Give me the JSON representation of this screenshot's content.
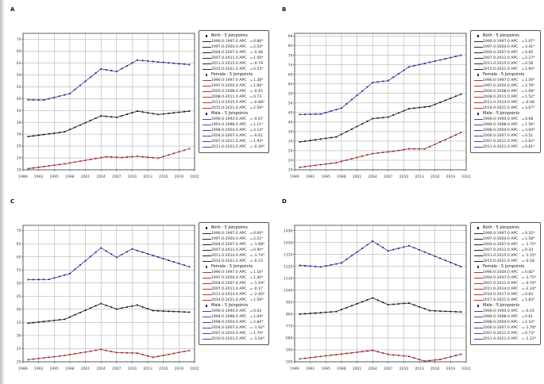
{
  "page": {
    "background": "#ffffff"
  },
  "colors": {
    "both": "#262626",
    "female": "#b23535",
    "male": "#4343b4",
    "both_marker": "#111111",
    "female_marker": "#8c2323",
    "male_marker": "#20206e",
    "grid": "#9a9a9a",
    "axis": "#3a3a3a",
    "legend_border": "#555555",
    "page_edge": "#c4c4c4"
  },
  "legend": {
    "equals": "="
  },
  "chart_data": [
    {
      "letter": "A",
      "type": "line",
      "grid": true,
      "legend_position": "right",
      "marker": "square",
      "title": "",
      "xlabel": "",
      "ylabel": "",
      "xlim": [
        1989,
        2022
      ],
      "ylim": [
        19,
        76.5
      ],
      "x_ticks": [
        1989,
        1992,
        1995,
        1998,
        2001,
        2004,
        2007,
        2010,
        2013,
        2016,
        2019,
        2022
      ],
      "y_ticks": [
        19,
        24,
        29,
        34,
        39,
        44,
        49,
        54,
        59,
        64,
        69,
        74
      ],
      "series": [
        {
          "id": "both",
          "legend_header": "Both - 5 Joinpoints",
          "joinpoints": {
            "x": [
              1990,
              1997,
              2004,
              2007,
              2011,
              2015,
              2021
            ],
            "y": [
              33.0,
              35.0,
              41.7,
              41.1,
              43.7,
              42.3,
              43.7
            ]
          },
          "entries": [
            {
              "range": "1990.0-1997.0 APC",
              "value": "0.86*"
            },
            {
              "range": "1997.0-2004.0 APC",
              "value": "2.54*"
            },
            {
              "range": "2004.0-2007.0 APC",
              "value": "-0.48"
            },
            {
              "range": "2007.0-2011.0 APC",
              "value": "1.56*"
            },
            {
              "range": "2011.0-2015.0 APC",
              "value": "-0.79"
            },
            {
              "range": "2015.0-2021.0 APC",
              "value": "0.53*"
            }
          ]
        },
        {
          "id": "female",
          "legend_header": "Female - 5 Joinpoints",
          "joinpoints": {
            "x": [
              1990,
              1997,
              2005,
              2008,
              2011,
              2015,
              2021
            ],
            "y": [
              19.5,
              21.5,
              24.5,
              24.2,
              24.7,
              23.9,
              27.9
            ]
          },
          "entries": [
            {
              "range": "1990.0-1997.0 APC",
              "value": "1.38*"
            },
            {
              "range": "1997.0-2005.0 APC",
              "value": "1.66*"
            },
            {
              "range": "2005.0-2008.0 APC",
              "value": "-0.45"
            },
            {
              "range": "2008.0-2011.0 APC",
              "value": "0.73"
            },
            {
              "range": "2011.0-2015.0 APC",
              "value": "-0.88*"
            },
            {
              "range": "2015.0-2021.0 APC",
              "value": "2.59*"
            }
          ]
        },
        {
          "id": "male",
          "legend_header": "Male - 5 Joinpoints",
          "joinpoints": {
            "x": [
              1990,
              1993,
              1998,
              2004,
              2007,
              2011,
              2021
            ],
            "y": [
              48.5,
              48.4,
              51.1,
              61.5,
              60.4,
              65.2,
              63.3
            ]
          },
          "entries": [
            {
              "range": "1990.0-1993.0 APC",
              "value": "-0.07"
            },
            {
              "range": "1993.0-1998.0 APC",
              "value": "1.11*"
            },
            {
              "range": "1998.0-2004.0 APC",
              "value": "3.14*"
            },
            {
              "range": "2004.0-2007.0 APC",
              "value": "-0.61"
            },
            {
              "range": "2007.0-2011.0 APC",
              "value": "1.93*"
            },
            {
              "range": "2011.0-2021.0 APC",
              "value": "-0.30*"
            }
          ]
        }
      ]
    },
    {
      "letter": "B",
      "type": "line",
      "grid": true,
      "legend_position": "right",
      "marker": "square",
      "title": "",
      "xlabel": "",
      "ylabel": "",
      "xlim": [
        1989,
        2022
      ],
      "ylim": [
        19,
        90.5
      ],
      "x_ticks": [
        1989,
        1992,
        1995,
        1998,
        2001,
        2004,
        2007,
        2010,
        2013,
        2016,
        2019,
        2022
      ],
      "y_ticks": [
        19,
        24,
        29,
        34,
        39,
        44,
        49,
        54,
        59,
        64,
        69,
        74,
        79,
        84,
        89
      ],
      "series": [
        {
          "id": "both",
          "legend_header": "Both - 5 Joinpoints",
          "joinpoints": {
            "x": [
              1990,
              1997,
              2004,
              2007,
              2011,
              2015,
              2021
            ],
            "y": [
              33.6,
              36.2,
              45.8,
              46.6,
              51.0,
              52.2,
              58.6
            ]
          },
          "entries": [
            {
              "range": "1990.0-1997.0 APC",
              "value": "1.07*"
            },
            {
              "range": "1997.0-2004.0 APC",
              "value": "3.41*"
            },
            {
              "range": "2004.0-2007.0 APC",
              "value": "0.60"
            },
            {
              "range": "2007.0-2011.0 APC",
              "value": "2.27*"
            },
            {
              "range": "2011.0-2015.0 APC",
              "value": "0.58"
            },
            {
              "range": "2015.0-2021.0 APC",
              "value": "1.94*"
            }
          ]
        },
        {
          "id": "female",
          "legend_header": "Female - 5 Joinpoints",
          "joinpoints": {
            "x": [
              1990,
              1997,
              2004,
              2008,
              2011,
              2014,
              2021
            ],
            "y": [
              20.3,
              22.7,
              27.5,
              28.7,
              30.0,
              29.9,
              38.5
            ]
          },
          "entries": [
            {
              "range": "1990.0-1997.0 APC",
              "value": "1.59*"
            },
            {
              "range": "1997.0-2004.0 APC",
              "value": "2.76*"
            },
            {
              "range": "2004.0-2008.0 APC",
              "value": "1.08*"
            },
            {
              "range": "2008.0-2011.0 APC",
              "value": "1.52*"
            },
            {
              "range": "2011.0-2014.0 APC",
              "value": "-0.08"
            },
            {
              "range": "2014.0-2021.0 APC",
              "value": "3.67*"
            }
          ]
        },
        {
          "id": "male",
          "legend_header": "Male - 5 Joinpoints",
          "joinpoints": {
            "x": [
              1990,
              1994,
              1998,
              2004,
              2007,
              2011,
              2021
            ],
            "y": [
              48.0,
              48.2,
              51.3,
              64.7,
              65.7,
              72.9,
              79.0
            ]
          },
          "entries": [
            {
              "range": "1990.0-1994.0 APC",
              "value": "0.08"
            },
            {
              "range": "1994.0-1998.0 APC",
              "value": "1.56*"
            },
            {
              "range": "1998.0-2004.0 APC",
              "value": "3.94*"
            },
            {
              "range": "2004.0-2007.0 APC",
              "value": "0.51"
            },
            {
              "range": "2007.0-2011.0 APC",
              "value": "2.62*"
            },
            {
              "range": "2011.0-2021.0 APC",
              "value": "0.81*"
            }
          ]
        }
      ]
    },
    {
      "letter": "C",
      "type": "line",
      "grid": true,
      "legend_position": "right",
      "marker": "square",
      "title": "",
      "xlabel": "",
      "ylabel": "",
      "xlim": [
        1989,
        2022
      ],
      "ylim": [
        20,
        72
      ],
      "x_ticks": [
        1989,
        1992,
        1995,
        1998,
        2001,
        2004,
        2007,
        2010,
        2013,
        2016,
        2019,
        2022
      ],
      "y_ticks": [
        20,
        25,
        30,
        35,
        40,
        45,
        50,
        55,
        60,
        65,
        70
      ],
      "series": [
        {
          "id": "both",
          "legend_header": "Both - 5 Joinpoints",
          "joinpoints": {
            "x": [
              1990,
              1997,
              2004,
              2007,
              2011,
              2014,
              2021
            ],
            "y": [
              34.7,
              36.2,
              42.2,
              40.1,
              41.6,
              39.5,
              38.9
            ]
          },
          "entries": [
            {
              "range": "1990.0-1997.0 APC",
              "value": "0.60*"
            },
            {
              "range": "1997.0-2004.0 APC",
              "value": "2.21*"
            },
            {
              "range": "2004.0-2007.0 APC",
              "value": "-1.68*"
            },
            {
              "range": "2007.0-2011.0 APC",
              "value": "0.90*"
            },
            {
              "range": "2011.0-2014.0 APC",
              "value": "-1.74*"
            },
            {
              "range": "2014.0-2021.0 APC",
              "value": "-0.23"
            }
          ]
        },
        {
          "id": "female",
          "legend_header": "Female - 5 Joinpoints",
          "joinpoints": {
            "x": [
              1990,
              1997,
              2004,
              2007,
              2011,
              2014,
              2021
            ],
            "y": [
              20.8,
              22.4,
              24.7,
              23.5,
              23.3,
              21.7,
              24.3
            ]
          },
          "entries": [
            {
              "range": "1990.0-1997.0 APC",
              "value": "1.10*"
            },
            {
              "range": "1997.0-2004.0 APC",
              "value": "1.40*"
            },
            {
              "range": "2004.0-2007.0 APC",
              "value": "-1.59*"
            },
            {
              "range": "2007.0-2011.0 APC",
              "value": "-0.17"
            },
            {
              "range": "2011.0-2014.0 APC",
              "value": "-2.40*"
            },
            {
              "range": "2014.0-2021.0 APC",
              "value": "1.59*"
            }
          ]
        },
        {
          "id": "male",
          "legend_header": "Male - 5 Joinpoints",
          "joinpoints": {
            "x": [
              1990,
              1994,
              1998,
              2004,
              2007,
              2010,
              2021
            ],
            "y": [
              51.3,
              51.4,
              53.6,
              63.4,
              59.8,
              63.0,
              56.2
            ]
          },
          "entries": [
            {
              "range": "1990.0-1994.0 APC",
              "value": "0.04"
            },
            {
              "range": "1994.0-1998.0 APC",
              "value": "1.04*"
            },
            {
              "range": "1998.0-2004.0 APC",
              "value": "2.84*"
            },
            {
              "range": "2004.0-2007.0 APC",
              "value": "-1.92*"
            },
            {
              "range": "2007.0-2010.0 APC",
              "value": "1.74*"
            },
            {
              "range": "2010.0-2021.0 APC",
              "value": "-1.04*"
            }
          ]
        }
      ]
    },
    {
      "letter": "D",
      "type": "line",
      "grid": true,
      "legend_position": "right",
      "marker": "square",
      "title": "",
      "xlabel": "",
      "ylabel": "",
      "xlim": [
        1989,
        2022
      ],
      "ylim": [
        500,
        1530
      ],
      "x_ticks": [
        1989,
        1992,
        1995,
        1998,
        2001,
        2004,
        2007,
        2010,
        2013,
        2016,
        2019,
        2022
      ],
      "y_ticks": [
        500,
        590,
        680,
        770,
        860,
        950,
        1040,
        1130,
        1220,
        1310,
        1400,
        1490
      ],
      "series": [
        {
          "id": "both",
          "legend_header": "Both - 5 Joinpoints",
          "joinpoints": {
            "x": [
              1990,
              1997,
              2004,
              2007,
              2011,
              2015,
              2021
            ],
            "y": [
              860,
              879,
              982,
              931,
              943,
              886,
              876
            ]
          },
          "entries": [
            {
              "range": "1990.0-1997.0 APC",
              "value": "0.32*"
            },
            {
              "range": "1997.0-2004.0 APC",
              "value": "1.58*"
            },
            {
              "range": "2004.0-2007.0 APC",
              "value": "-1.75*"
            },
            {
              "range": "2007.0-2011.0 APC",
              "value": "0.33"
            },
            {
              "range": "2011.0-2015.0 APC",
              "value": "-1.55*"
            },
            {
              "range": "2015.0-2021.0 APC",
              "value": "-0.18"
            }
          ]
        },
        {
          "id": "female",
          "legend_header": "Female - 5 Joinpoints",
          "joinpoints": {
            "x": [
              1990,
              2004,
              2007,
              2011,
              2014,
              2017,
              2021
            ],
            "y": [
              522,
              586,
              556,
              541,
              505,
              518,
              557
            ]
          },
          "entries": [
            {
              "range": "1990.0-2004.0 APC",
              "value": "0.82*"
            },
            {
              "range": "2004.0-2007.0 APC",
              "value": "-1.75*"
            },
            {
              "range": "2007.0-2011.0 APC",
              "value": "-0.70*"
            },
            {
              "range": "2011.0-2014.0 APC",
              "value": "-2.24*"
            },
            {
              "range": "2014.0-2017.0 APC",
              "value": "0.83"
            },
            {
              "range": "2017.0-2021.0 APC",
              "value": "1.83*"
            }
          ]
        },
        {
          "id": "male",
          "legend_header": "Male - 5 Joinpoints",
          "joinpoints": {
            "x": [
              1990,
              1994,
              1998,
              2004,
              2007,
              2011,
              2021
            ],
            "y": [
              1228,
              1216,
              1246,
              1411,
              1337,
              1376,
              1218
            ]
          },
          "entries": [
            {
              "range": "1990.0-1994.0 APC",
              "value": "-0.25"
            },
            {
              "range": "1994.0-1998.0 APC",
              "value": "0.61"
            },
            {
              "range": "1998.0-2004.0 APC",
              "value": "2.10*"
            },
            {
              "range": "2004.0-2007.0 APC",
              "value": "-1.78*"
            },
            {
              "range": "2007.0-2011.0 APC",
              "value": "0.73*"
            },
            {
              "range": "2011.0-2021.0 APC",
              "value": "-1.22*"
            }
          ]
        }
      ]
    }
  ]
}
